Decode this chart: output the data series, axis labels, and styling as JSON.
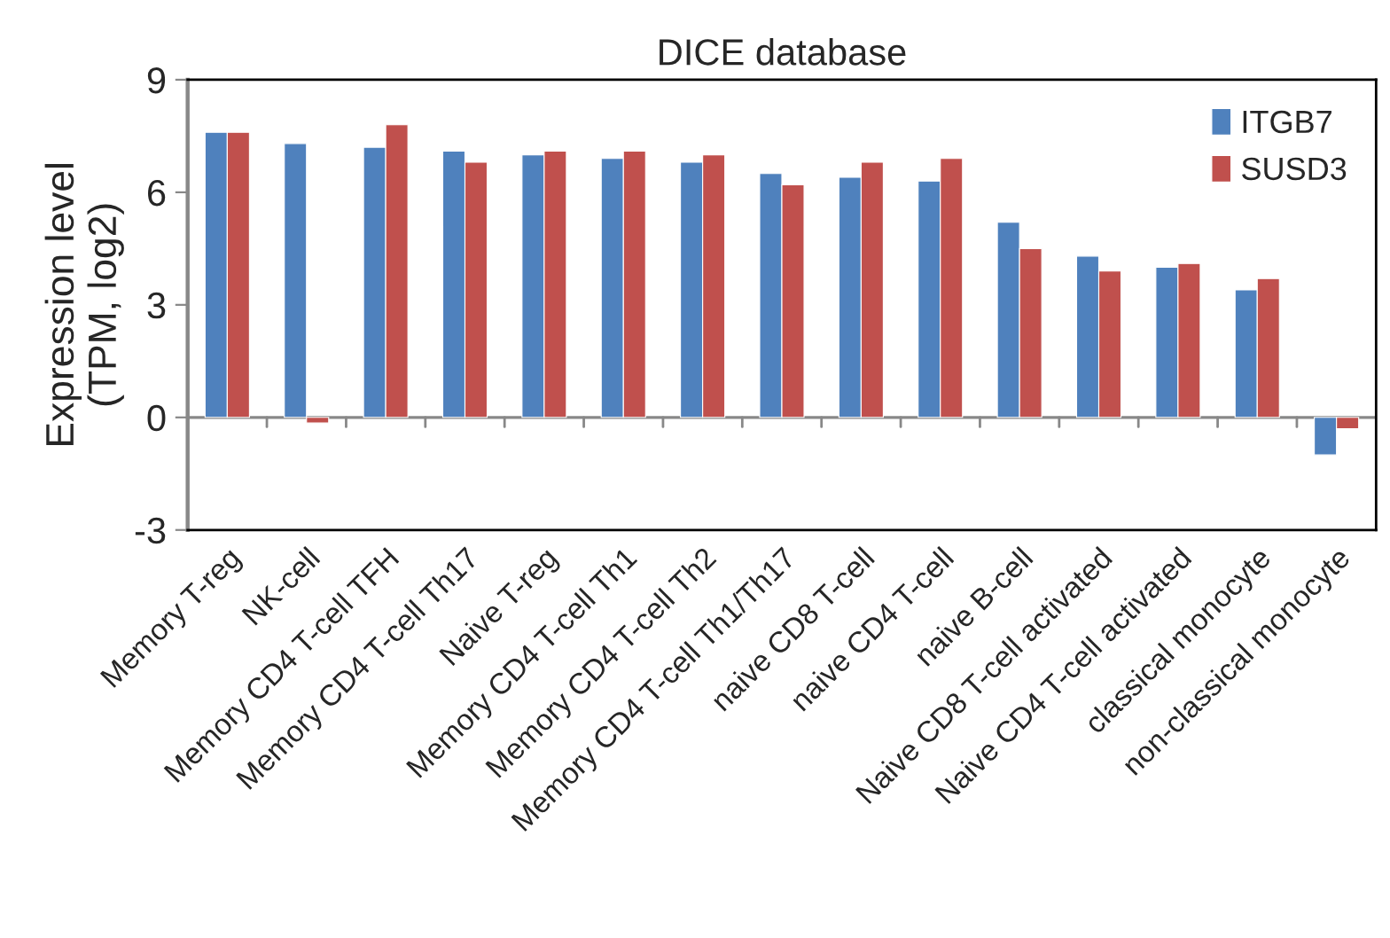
{
  "chart_data": {
    "type": "bar",
    "title": "DICE database",
    "ylabel": "Expression level\n(TPM, log2)",
    "categories": [
      "Memory T-reg",
      "NK-cell",
      "Memory CD4 T-cell TFH",
      "Memory CD4 T-cell Th17",
      "Naive T-reg",
      "Memory CD4 T-cell Th1",
      "Memory CD4 T-cell Th2",
      "Memory CD4 T-cell Th1/Th17",
      "naive CD8 T-cell",
      "naive CD4 T-cell",
      "naive B-cell",
      "Naive CD8 T-cell activated",
      "Naive CD4 T-cell activated",
      "classical monocyte",
      "non-classical monocyte"
    ],
    "series": [
      {
        "name": "ITGB7",
        "color": "#4f81bd",
        "values": [
          7.6,
          7.3,
          7.2,
          7.1,
          7.0,
          6.9,
          6.8,
          6.5,
          6.4,
          6.3,
          5.2,
          4.3,
          4.0,
          3.4,
          -1.0
        ]
      },
      {
        "name": "SUSD3",
        "color": "#c0504d",
        "values": [
          7.6,
          -0.15,
          7.8,
          6.8,
          7.1,
          7.1,
          7.0,
          6.2,
          6.8,
          6.9,
          4.5,
          3.9,
          4.1,
          3.7,
          -0.3
        ]
      }
    ],
    "ylim": [
      -3,
      9
    ],
    "yticks": [
      -3,
      0,
      3,
      6,
      9
    ],
    "legend": "top right"
  }
}
